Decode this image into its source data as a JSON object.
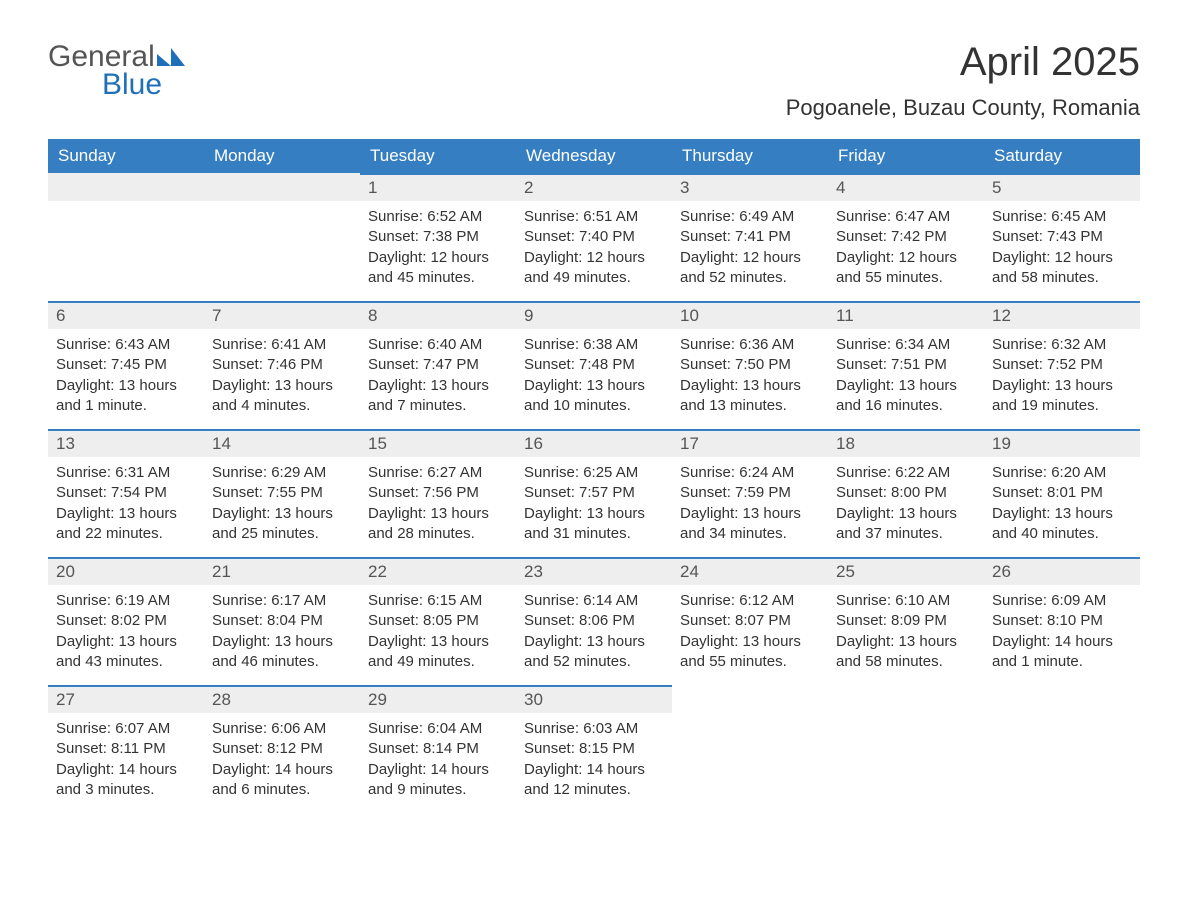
{
  "brand": {
    "word1": "General",
    "word2": "Blue",
    "logo_color": "#1f70b8",
    "text_color": "#555555"
  },
  "title": "April 2025",
  "location": "Pogoanele, Buzau County, Romania",
  "colors": {
    "header_bg": "#367ec2",
    "header_fg": "#ffffff",
    "daynum_bg": "#eeeeee",
    "daynum_border": "#367ec2",
    "body_bg": "#ffffff",
    "text": "#333333"
  },
  "weekdays": [
    "Sunday",
    "Monday",
    "Tuesday",
    "Wednesday",
    "Thursday",
    "Friday",
    "Saturday"
  ],
  "weeks": [
    [
      {
        "empty": true
      },
      {
        "empty": true
      },
      {
        "day": "1",
        "sunrise": "Sunrise: 6:52 AM",
        "sunset": "Sunset: 7:38 PM",
        "daylight": "Daylight: 12 hours and 45 minutes."
      },
      {
        "day": "2",
        "sunrise": "Sunrise: 6:51 AM",
        "sunset": "Sunset: 7:40 PM",
        "daylight": "Daylight: 12 hours and 49 minutes."
      },
      {
        "day": "3",
        "sunrise": "Sunrise: 6:49 AM",
        "sunset": "Sunset: 7:41 PM",
        "daylight": "Daylight: 12 hours and 52 minutes."
      },
      {
        "day": "4",
        "sunrise": "Sunrise: 6:47 AM",
        "sunset": "Sunset: 7:42 PM",
        "daylight": "Daylight: 12 hours and 55 minutes."
      },
      {
        "day": "5",
        "sunrise": "Sunrise: 6:45 AM",
        "sunset": "Sunset: 7:43 PM",
        "daylight": "Daylight: 12 hours and 58 minutes."
      }
    ],
    [
      {
        "day": "6",
        "sunrise": "Sunrise: 6:43 AM",
        "sunset": "Sunset: 7:45 PM",
        "daylight": "Daylight: 13 hours and 1 minute."
      },
      {
        "day": "7",
        "sunrise": "Sunrise: 6:41 AM",
        "sunset": "Sunset: 7:46 PM",
        "daylight": "Daylight: 13 hours and 4 minutes."
      },
      {
        "day": "8",
        "sunrise": "Sunrise: 6:40 AM",
        "sunset": "Sunset: 7:47 PM",
        "daylight": "Daylight: 13 hours and 7 minutes."
      },
      {
        "day": "9",
        "sunrise": "Sunrise: 6:38 AM",
        "sunset": "Sunset: 7:48 PM",
        "daylight": "Daylight: 13 hours and 10 minutes."
      },
      {
        "day": "10",
        "sunrise": "Sunrise: 6:36 AM",
        "sunset": "Sunset: 7:50 PM",
        "daylight": "Daylight: 13 hours and 13 minutes."
      },
      {
        "day": "11",
        "sunrise": "Sunrise: 6:34 AM",
        "sunset": "Sunset: 7:51 PM",
        "daylight": "Daylight: 13 hours and 16 minutes."
      },
      {
        "day": "12",
        "sunrise": "Sunrise: 6:32 AM",
        "sunset": "Sunset: 7:52 PM",
        "daylight": "Daylight: 13 hours and 19 minutes."
      }
    ],
    [
      {
        "day": "13",
        "sunrise": "Sunrise: 6:31 AM",
        "sunset": "Sunset: 7:54 PM",
        "daylight": "Daylight: 13 hours and 22 minutes."
      },
      {
        "day": "14",
        "sunrise": "Sunrise: 6:29 AM",
        "sunset": "Sunset: 7:55 PM",
        "daylight": "Daylight: 13 hours and 25 minutes."
      },
      {
        "day": "15",
        "sunrise": "Sunrise: 6:27 AM",
        "sunset": "Sunset: 7:56 PM",
        "daylight": "Daylight: 13 hours and 28 minutes."
      },
      {
        "day": "16",
        "sunrise": "Sunrise: 6:25 AM",
        "sunset": "Sunset: 7:57 PM",
        "daylight": "Daylight: 13 hours and 31 minutes."
      },
      {
        "day": "17",
        "sunrise": "Sunrise: 6:24 AM",
        "sunset": "Sunset: 7:59 PM",
        "daylight": "Daylight: 13 hours and 34 minutes."
      },
      {
        "day": "18",
        "sunrise": "Sunrise: 6:22 AM",
        "sunset": "Sunset: 8:00 PM",
        "daylight": "Daylight: 13 hours and 37 minutes."
      },
      {
        "day": "19",
        "sunrise": "Sunrise: 6:20 AM",
        "sunset": "Sunset: 8:01 PM",
        "daylight": "Daylight: 13 hours and 40 minutes."
      }
    ],
    [
      {
        "day": "20",
        "sunrise": "Sunrise: 6:19 AM",
        "sunset": "Sunset: 8:02 PM",
        "daylight": "Daylight: 13 hours and 43 minutes."
      },
      {
        "day": "21",
        "sunrise": "Sunrise: 6:17 AM",
        "sunset": "Sunset: 8:04 PM",
        "daylight": "Daylight: 13 hours and 46 minutes."
      },
      {
        "day": "22",
        "sunrise": "Sunrise: 6:15 AM",
        "sunset": "Sunset: 8:05 PM",
        "daylight": "Daylight: 13 hours and 49 minutes."
      },
      {
        "day": "23",
        "sunrise": "Sunrise: 6:14 AM",
        "sunset": "Sunset: 8:06 PM",
        "daylight": "Daylight: 13 hours and 52 minutes."
      },
      {
        "day": "24",
        "sunrise": "Sunrise: 6:12 AM",
        "sunset": "Sunset: 8:07 PM",
        "daylight": "Daylight: 13 hours and 55 minutes."
      },
      {
        "day": "25",
        "sunrise": "Sunrise: 6:10 AM",
        "sunset": "Sunset: 8:09 PM",
        "daylight": "Daylight: 13 hours and 58 minutes."
      },
      {
        "day": "26",
        "sunrise": "Sunrise: 6:09 AM",
        "sunset": "Sunset: 8:10 PM",
        "daylight": "Daylight: 14 hours and 1 minute."
      }
    ],
    [
      {
        "day": "27",
        "sunrise": "Sunrise: 6:07 AM",
        "sunset": "Sunset: 8:11 PM",
        "daylight": "Daylight: 14 hours and 3 minutes."
      },
      {
        "day": "28",
        "sunrise": "Sunrise: 6:06 AM",
        "sunset": "Sunset: 8:12 PM",
        "daylight": "Daylight: 14 hours and 6 minutes."
      },
      {
        "day": "29",
        "sunrise": "Sunrise: 6:04 AM",
        "sunset": "Sunset: 8:14 PM",
        "daylight": "Daylight: 14 hours and 9 minutes."
      },
      {
        "day": "30",
        "sunrise": "Sunrise: 6:03 AM",
        "sunset": "Sunset: 8:15 PM",
        "daylight": "Daylight: 14 hours and 12 minutes."
      },
      {
        "empty": true,
        "trailing": true
      },
      {
        "empty": true,
        "trailing": true
      },
      {
        "empty": true,
        "trailing": true
      }
    ]
  ]
}
